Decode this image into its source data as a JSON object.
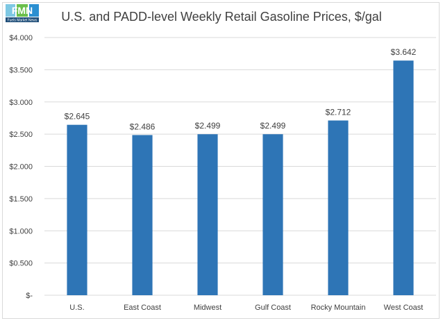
{
  "logo": {
    "letters": "FMN",
    "tagline": "Fuels Market News"
  },
  "chart_data": {
    "type": "bar",
    "title": "U.S. and PADD-level Weekly Retail Gasoline Prices, $/gal",
    "categories": [
      "U.S.",
      "East Coast",
      "Midwest",
      "Gulf Coast",
      "Rocky Mountain",
      "West Coast"
    ],
    "values": [
      2.645,
      2.486,
      2.499,
      2.499,
      2.712,
      3.642
    ],
    "data_labels": [
      "$2.645",
      "$2.486",
      "$2.499",
      "$2.499",
      "$2.712",
      "$3.642"
    ],
    "ylim": [
      0,
      4
    ],
    "yticks": [
      0,
      0.5,
      1,
      1.5,
      2,
      2.5,
      3,
      3.5,
      4
    ],
    "ytick_labels": [
      "$-",
      "$0.500",
      "$1.000",
      "$1.500",
      "$2.000",
      "$2.500",
      "$3.000",
      "$3.500",
      "$4.000"
    ],
    "grid": true,
    "legend": "none",
    "colors": {
      "bar": "#2e75b6",
      "grid": "#d9d9d9",
      "text": "#404040",
      "title": "#404040"
    }
  }
}
